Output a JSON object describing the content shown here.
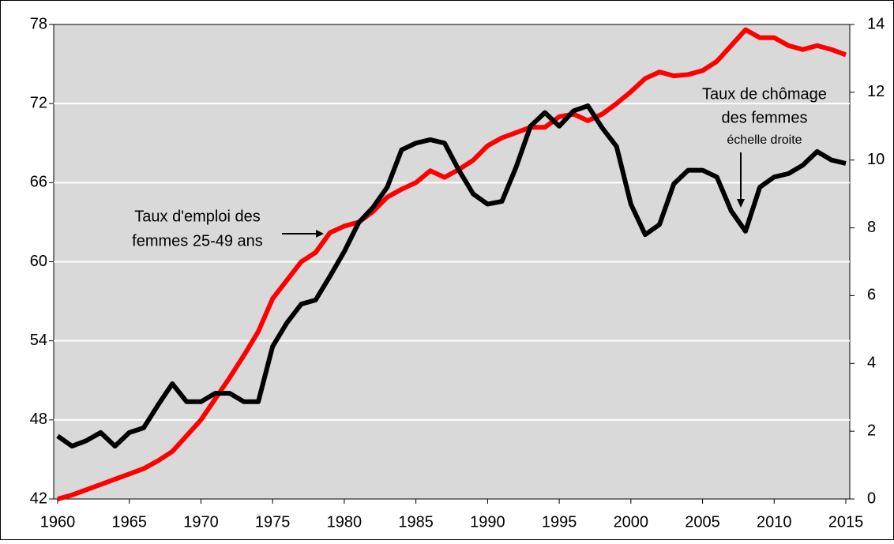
{
  "chart_data": {
    "type": "line",
    "x": [
      1960,
      1961,
      1962,
      1963,
      1964,
      1965,
      1966,
      1967,
      1968,
      1969,
      1970,
      1971,
      1972,
      1973,
      1974,
      1975,
      1976,
      1977,
      1978,
      1979,
      1980,
      1981,
      1982,
      1983,
      1984,
      1985,
      1986,
      1987,
      1988,
      1989,
      1990,
      1991,
      1992,
      1993,
      1994,
      1995,
      1996,
      1997,
      1998,
      1999,
      2000,
      2001,
      2002,
      2003,
      2004,
      2005,
      2006,
      2007,
      2008,
      2009,
      2010,
      2011,
      2012,
      2013,
      2014,
      2015
    ],
    "xlim": [
      1960,
      2015
    ],
    "xticks": [
      1960,
      1965,
      1970,
      1975,
      1980,
      1985,
      1990,
      1995,
      2000,
      2005,
      2010,
      2015
    ],
    "ylim": [
      42,
      78
    ],
    "yticks": [
      42,
      48,
      54,
      60,
      66,
      72,
      78
    ],
    "y2lim": [
      0,
      14
    ],
    "y2ticks": [
      0,
      2,
      4,
      6,
      8,
      10,
      12,
      14
    ],
    "grid": true,
    "series": [
      {
        "color": "#ff0000",
        "values": [
          42,
          42.3,
          42.7,
          43.1,
          43.5,
          43.9,
          44.3,
          44.9,
          45.6,
          46.8,
          48.0,
          49.6,
          51.2,
          52.9,
          54.7,
          57.2,
          58.6,
          60.0,
          60.7,
          62.2,
          62.7,
          63.0,
          63.8,
          64.9,
          65.5,
          66.0,
          66.9,
          66.4,
          67.0,
          67.7,
          68.8,
          69.4,
          69.8,
          70.2,
          70.2,
          71.0,
          71.2,
          70.7,
          71.2,
          72.0,
          72.9,
          73.9,
          74.4,
          74.1,
          74.2,
          74.5,
          75.2,
          76.4,
          77.6,
          77.0,
          77.0,
          76.4,
          76.1,
          76.4,
          76.1,
          75.7
        ]
      },
      {
        "color": "#000000",
        "axis": "y2",
        "values": [
          1.86,
          1.56,
          1.72,
          1.96,
          1.56,
          1.96,
          2.1,
          2.77,
          3.4,
          2.87,
          2.87,
          3.12,
          3.12,
          2.87,
          2.87,
          4.5,
          5.2,
          5.75,
          5.87,
          6.57,
          7.3,
          8.15,
          8.6,
          9.2,
          10.3,
          10.5,
          10.6,
          10.5,
          9.7,
          9.0,
          8.7,
          8.78,
          9.8,
          11.0,
          11.4,
          11.0,
          11.45,
          11.6,
          10.95,
          10.4,
          8.7,
          7.8,
          8.1,
          9.3,
          9.7,
          9.7,
          9.5,
          8.5,
          7.9,
          9.2,
          9.5,
          9.6,
          9.85,
          10.25,
          10.0,
          9.9
        ]
      }
    ],
    "annotations": [
      {
        "lines": [
          "Taux d'emploi des",
          "femmes 25-49 ans"
        ]
      },
      {
        "lines": [
          "Taux de chômage",
          "des femmes",
          "échelle droite"
        ]
      }
    ]
  }
}
